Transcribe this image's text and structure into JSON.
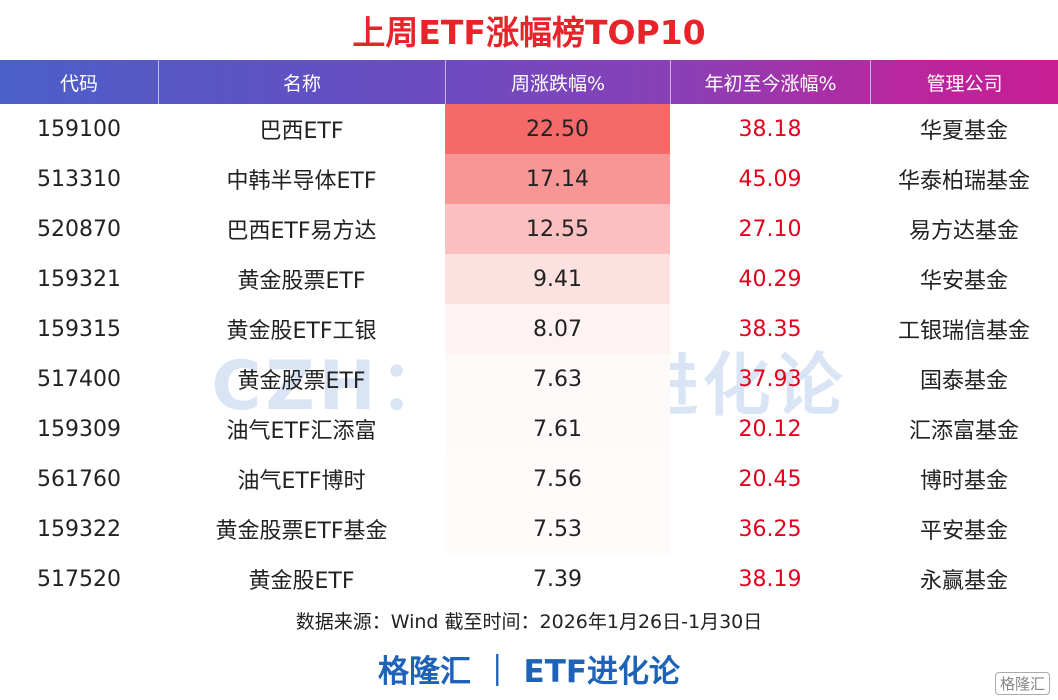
{
  "title": "上周ETF涨幅榜TOP10",
  "table": {
    "headers": [
      "代码",
      "名称",
      "周涨跌幅%",
      "年初至今涨幅%",
      "管理公司"
    ],
    "rows": [
      [
        "159100",
        "巴西ETF",
        "22.50",
        "38.18",
        "华夏基金"
      ],
      [
        "513310",
        "中韩半导体ETF",
        "17.14",
        "45.09",
        "华泰柏瑞基金"
      ],
      [
        "520870",
        "巴西ETF易方达",
        "12.55",
        "27.10",
        "易方达基金"
      ],
      [
        "159321",
        "黄金股票ETF",
        "9.41",
        "40.29",
        "华安基金"
      ],
      [
        "159315",
        "黄金股ETF工银",
        "8.07",
        "38.35",
        "工银瑞信基金"
      ],
      [
        "517400",
        "黄金股票ETF",
        "7.63",
        "37.93",
        "国泰基金"
      ],
      [
        "159309",
        "油气ETF汇添富",
        "7.61",
        "20.12",
        "汇添富基金"
      ],
      [
        "561760",
        "油气ETF博时",
        "7.56",
        "20.45",
        "博时基金"
      ],
      [
        "159322",
        "黄金股票ETF基金",
        "7.53",
        "36.25",
        "平安基金"
      ],
      [
        "517520",
        "黄金股ETF",
        "7.39",
        "38.19",
        "永赢基金"
      ]
    ]
  },
  "source": "数据来源：Wind 截至时间：2026年1月26日-1月30日",
  "brand": "格隆汇 ｜ ETF进化论",
  "watermark": "CZH： ETF进化论",
  "logo": "格隆汇"
}
